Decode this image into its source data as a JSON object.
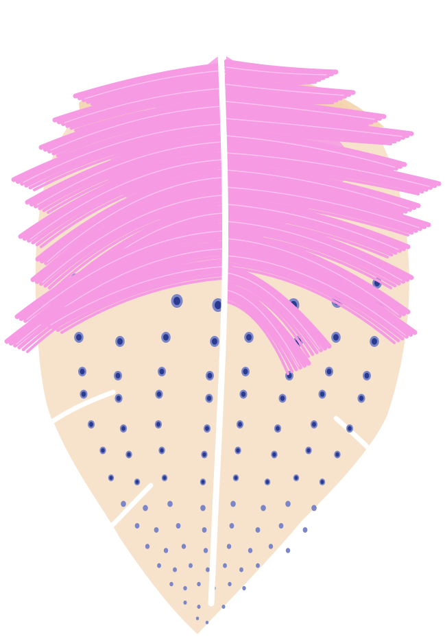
{
  "colors": {
    "background": "#ffffff",
    "feather_body": "#f7e3cc",
    "feather_shadow": "#f2d1a8",
    "quill": "#ffffff",
    "barbs_pink": "#f59ae3",
    "barbs_pink_light": "#fbc4f0",
    "spots_dark": "#2a3b8f",
    "spots_light": "#7b86c8"
  },
  "illustration": {
    "subject": "feather-icon",
    "parts": [
      "feather-body",
      "quill",
      "pink-barbs",
      "spots"
    ]
  }
}
